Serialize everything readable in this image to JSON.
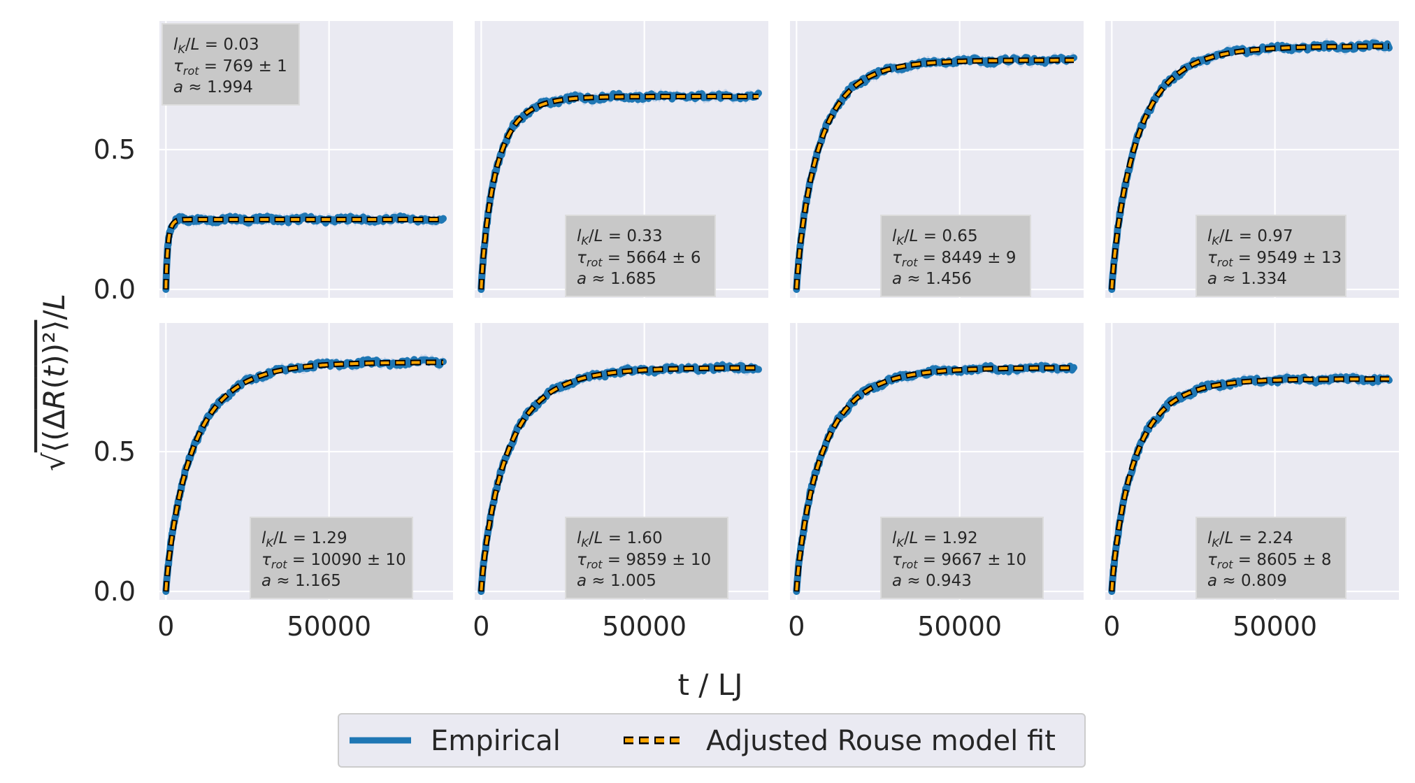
{
  "chart_data": {
    "type": "line",
    "layout": "2x4 grid of subplots, shared axes",
    "xlabel": "t / LJ",
    "ylabel": "√⟨(ΔR(t))²⟩/L",
    "xlim": [
      -2000,
      88000
    ],
    "xticks": [
      0,
      50000
    ],
    "xtick_labels": [
      "0",
      "50000"
    ],
    "ylim": [
      -0.03,
      0.96
    ],
    "yticks": [
      0.0,
      0.5
    ],
    "ytick_labels": [
      "0.0",
      "0.5"
    ],
    "grid": true,
    "background": "#eaeaf2",
    "series_styles": {
      "Empirical": {
        "color": "#1f77b4",
        "band_color": "#aec7e8",
        "style": "thick solid line with shaded band"
      },
      "Adjusted Rouse model fit": {
        "color": "#ffa500",
        "edge_color": "#000000",
        "style": "dashed orange line with black outline"
      }
    },
    "legend": {
      "position": "bottom-center",
      "entries": [
        "Empirical",
        "Adjusted Rouse model fit"
      ]
    },
    "panels": [
      {
        "lk_L": "0.03",
        "tau_rot": "769 ± 1",
        "a": "1.994",
        "plateau": 0.25,
        "tau": 769,
        "annotation_position": "top-left"
      },
      {
        "lk_L": "0.33",
        "tau_rot": "5664 ± 6",
        "a": "1.685",
        "plateau": 0.69,
        "tau": 5664,
        "annotation_position": "bottom-center"
      },
      {
        "lk_L": "0.65",
        "tau_rot": "8449 ± 9",
        "a": "1.456",
        "plateau": 0.82,
        "tau": 8449,
        "annotation_position": "bottom-center"
      },
      {
        "lk_L": "0.97",
        "tau_rot": "9549 ± 13",
        "a": "1.334",
        "plateau": 0.87,
        "tau": 9549,
        "annotation_position": "bottom-center"
      },
      {
        "lk_L": "1.29",
        "tau_rot": "10090 ± 10",
        "a": "1.165",
        "plateau": 0.82,
        "tau": 10090,
        "annotation_position": "bottom-center"
      },
      {
        "lk_L": "1.60",
        "tau_rot": "9859 ± 10",
        "a": "1.005",
        "plateau": 0.8,
        "tau": 9859,
        "annotation_position": "bottom-center"
      },
      {
        "lk_L": "1.92",
        "tau_rot": "9667 ± 10",
        "a": "0.943",
        "plateau": 0.8,
        "tau": 9667,
        "annotation_position": "bottom-center"
      },
      {
        "lk_L": "2.24",
        "tau_rot": "8605 ± 8",
        "a": "0.809",
        "plateau": 0.76,
        "tau": 8605,
        "annotation_position": "bottom-center"
      }
    ],
    "t_max": 85000
  }
}
